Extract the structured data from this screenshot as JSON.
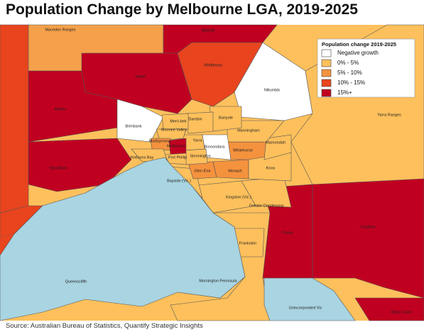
{
  "title": "Population Change by Melbourne LGA, 2019-2025",
  "legend": {
    "title": "Population change 2019-2025",
    "items": [
      {
        "label": "Negative growth",
        "color": "#ffffff"
      },
      {
        "label": "0% - 5%",
        "color": "#fdc05c"
      },
      {
        "label": "5% - 10%",
        "color": "#f5923e"
      },
      {
        "label": "10% - 15%",
        "color": "#e8441e"
      },
      {
        "label": "15%+",
        "color": "#c00020"
      }
    ]
  },
  "regions": [
    {
      "name": "Macedon Ranges",
      "color": "#f5a04a"
    },
    {
      "name": "Mitchell",
      "color": "#c00020"
    },
    {
      "name": "Hume",
      "color": "#c00020"
    },
    {
      "name": "Whittlesea",
      "color": "#e8441e"
    },
    {
      "name": "Nillumbik",
      "color": "#ffffff"
    },
    {
      "name": "Melton",
      "color": "#c00020"
    },
    {
      "name": "Brimbank",
      "color": "#ffffff"
    },
    {
      "name": "Wyndham",
      "color": "#c00020"
    },
    {
      "name": "Yarra Ranges",
      "color": "#fdc05c"
    },
    {
      "name": "Mornington Peninsula",
      "color": "#fdc05c"
    },
    {
      "name": "Casey",
      "color": "#c00020"
    },
    {
      "name": "Cardinia",
      "color": "#c00020"
    },
    {
      "name": "Bass Coast",
      "color": "#c00020"
    },
    {
      "name": "Unincorporated Vic",
      "color": "#ffffff"
    },
    {
      "name": "Frankston",
      "color": "#fdc05c"
    },
    {
      "name": "Kingston (Vic.)",
      "color": "#fdc05c"
    },
    {
      "name": "Greater Dandenong",
      "color": "#fdc05c"
    },
    {
      "name": "Bayside (Vic.)",
      "color": "#fdc05c"
    },
    {
      "name": "Glen Eira",
      "color": "#f5923e"
    },
    {
      "name": "Monash",
      "color": "#f5923e"
    },
    {
      "name": "Whitehorse",
      "color": "#f5923e"
    },
    {
      "name": "Knox",
      "color": "#fdc05c"
    },
    {
      "name": "Maroondah",
      "color": "#fdc05c"
    },
    {
      "name": "Manningham",
      "color": "#fdc05c"
    },
    {
      "name": "Boroondara",
      "color": "#ffffff"
    },
    {
      "name": "Stonnington",
      "color": "#fdc05c"
    },
    {
      "name": "Yarra",
      "color": "#fdc05c"
    },
    {
      "name": "Banyule",
      "color": "#fdc05c"
    },
    {
      "name": "Darebin",
      "color": "#fdc05c"
    },
    {
      "name": "Merri-bek",
      "color": "#fdc05c"
    },
    {
      "name": "Moonee Valley",
      "color": "#fdc05c"
    },
    {
      "name": "Maribyrnong",
      "color": "#f5923e"
    },
    {
      "name": "Melbourne",
      "color": "#c00020"
    },
    {
      "name": "Port Phillip",
      "color": "#fdc05c"
    },
    {
      "name": "Hobsons Bay",
      "color": "#fdc05c"
    },
    {
      "name": "Queenscliffe",
      "color": "#c00020"
    }
  ],
  "source": "Source: Australian Bureau of Statistics, Quantify Strategic Insights"
}
